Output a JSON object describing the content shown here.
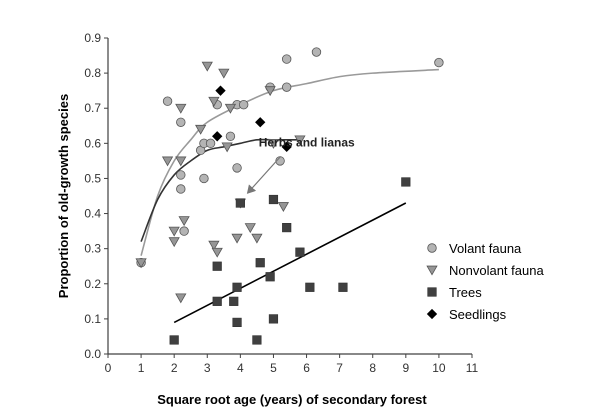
{
  "chart_data": {
    "type": "scatter",
    "xlabel": "Square root age (years) of secondary forest",
    "ylabel": "Proportion of old-growth species",
    "xlim": [
      0,
      11
    ],
    "ylim": [
      0.0,
      0.9
    ],
    "x_ticks": [
      "0",
      "1",
      "2",
      "3",
      "4",
      "5",
      "6",
      "7",
      "8",
      "9",
      "10",
      "11"
    ],
    "y_ticks": [
      "0.0",
      "0.1",
      "0.2",
      "0.3",
      "0.4",
      "0.5",
      "0.6",
      "0.7",
      "0.8",
      "0.9"
    ],
    "legend_position": "right",
    "series": [
      {
        "name": "Volant fauna",
        "marker": "circle",
        "color": "#b4b4b4",
        "points": [
          [
            1.0,
            0.26
          ],
          [
            1.8,
            0.72
          ],
          [
            2.2,
            0.66
          ],
          [
            2.2,
            0.51
          ],
          [
            2.2,
            0.47
          ],
          [
            2.3,
            0.35
          ],
          [
            2.8,
            0.58
          ],
          [
            2.9,
            0.6
          ],
          [
            2.9,
            0.5
          ],
          [
            3.1,
            0.6
          ],
          [
            3.3,
            0.71
          ],
          [
            3.7,
            0.62
          ],
          [
            3.9,
            0.53
          ],
          [
            3.9,
            0.71
          ],
          [
            4.1,
            0.71
          ],
          [
            4.9,
            0.76
          ],
          [
            5.2,
            0.55
          ],
          [
            5.4,
            0.76
          ],
          [
            5.4,
            0.84
          ],
          [
            6.3,
            0.86
          ],
          [
            10.0,
            0.83
          ]
        ]
      },
      {
        "name": "Nonvolant fauna",
        "marker": "triangle",
        "color": "#969696",
        "points": [
          [
            1.0,
            0.26
          ],
          [
            1.8,
            0.55
          ],
          [
            2.0,
            0.35
          ],
          [
            2.0,
            0.32
          ],
          [
            2.2,
            0.55
          ],
          [
            2.2,
            0.7
          ],
          [
            2.2,
            0.16
          ],
          [
            2.3,
            0.38
          ],
          [
            2.8,
            0.64
          ],
          [
            3.0,
            0.82
          ],
          [
            3.2,
            0.72
          ],
          [
            3.2,
            0.31
          ],
          [
            3.3,
            0.29
          ],
          [
            3.5,
            0.8
          ],
          [
            3.6,
            0.59
          ],
          [
            3.7,
            0.7
          ],
          [
            3.9,
            0.33
          ],
          [
            4.0,
            0.43
          ],
          [
            4.3,
            0.36
          ],
          [
            4.5,
            0.33
          ],
          [
            4.9,
            0.75
          ],
          [
            5.0,
            0.6
          ],
          [
            5.3,
            0.42
          ],
          [
            5.8,
            0.61
          ]
        ]
      },
      {
        "name": "Trees",
        "marker": "square",
        "color": "#404040",
        "points": [
          [
            2.0,
            0.04
          ],
          [
            3.3,
            0.25
          ],
          [
            3.3,
            0.15
          ],
          [
            3.8,
            0.15
          ],
          [
            3.9,
            0.09
          ],
          [
            3.9,
            0.19
          ],
          [
            4.0,
            0.43
          ],
          [
            4.5,
            0.04
          ],
          [
            4.6,
            0.26
          ],
          [
            4.9,
            0.22
          ],
          [
            5.0,
            0.1
          ],
          [
            5.0,
            0.44
          ],
          [
            5.4,
            0.36
          ],
          [
            5.8,
            0.29
          ],
          [
            6.1,
            0.19
          ],
          [
            7.1,
            0.19
          ],
          [
            9.0,
            0.49
          ]
        ]
      },
      {
        "name": "Seedlings",
        "marker": "diamond",
        "color": "#000000",
        "points": [
          [
            3.3,
            0.62
          ],
          [
            3.4,
            0.75
          ],
          [
            4.6,
            0.66
          ],
          [
            5.4,
            0.59
          ]
        ]
      }
    ],
    "curves": [
      {
        "color": "#9a9a9a",
        "points": [
          [
            1.0,
            0.28
          ],
          [
            1.5,
            0.45
          ],
          [
            2.0,
            0.55
          ],
          [
            2.5,
            0.61
          ],
          [
            3.0,
            0.66
          ],
          [
            4.0,
            0.71
          ],
          [
            5.0,
            0.75
          ],
          [
            6.0,
            0.77
          ],
          [
            7.0,
            0.79
          ],
          [
            8.0,
            0.8
          ],
          [
            10.0,
            0.81
          ]
        ]
      },
      {
        "color": "#333333",
        "points": [
          [
            1.0,
            0.32
          ],
          [
            1.5,
            0.44
          ],
          [
            2.0,
            0.51
          ],
          [
            2.5,
            0.55
          ],
          [
            3.0,
            0.58
          ],
          [
            3.5,
            0.59
          ],
          [
            4.0,
            0.6
          ],
          [
            4.5,
            0.61
          ],
          [
            5.0,
            0.61
          ],
          [
            5.5,
            0.61
          ],
          [
            5.8,
            0.61
          ]
        ]
      },
      {
        "color": "#000000",
        "points": [
          [
            2.0,
            0.09
          ],
          [
            9.0,
            0.43
          ]
        ]
      }
    ],
    "annotations": [
      {
        "text": "Herbs and lianas",
        "x": 5.4,
        "y": 0.58,
        "arrow_to": [
          4.1,
          0.45
        ]
      }
    ]
  }
}
